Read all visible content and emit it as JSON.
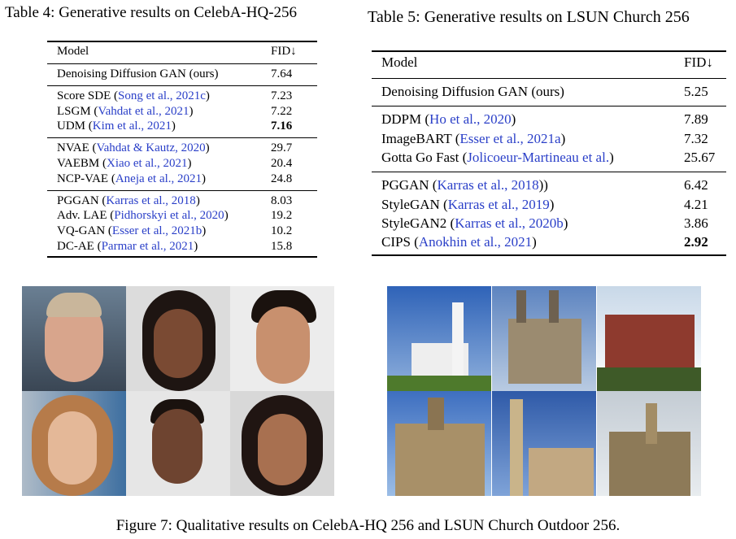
{
  "table4": {
    "caption": "Table 4: Generative results on CelebA-HQ-256",
    "header": [
      "Model",
      "FID↓"
    ],
    "groups": [
      [
        {
          "prefix": "Denoising Diffusion GAN (ours)",
          "fid": 7.64
        }
      ],
      [
        {
          "prefix": "Score SDE (",
          "cite": "Song et al., 2021c",
          "suffix": ")",
          "fid": 7.23
        },
        {
          "prefix": "LSGM (",
          "cite": "Vahdat et al., 2021",
          "suffix": ")",
          "fid": 7.22
        },
        {
          "prefix": "UDM (",
          "cite": "Kim et al., 2021",
          "suffix": ")",
          "fid": 7.16,
          "bold": true
        }
      ],
      [
        {
          "prefix": "NVAE (",
          "cite": "Vahdat & Kautz, 2020",
          "suffix": ")",
          "fid": 29.7
        },
        {
          "prefix": "VAEBM (",
          "cite": "Xiao et al., 2021",
          "suffix": ")",
          "fid": 20.4
        },
        {
          "prefix": "NCP-VAE (",
          "cite": "Aneja et al., 2021",
          "suffix": ")",
          "fid": 24.8
        }
      ],
      [
        {
          "prefix": "PGGAN (",
          "cite": "Karras et al., 2018",
          "suffix": ")",
          "fid": 8.03
        },
        {
          "prefix": "Adv. LAE (",
          "cite": "Pidhorskyi et al., 2020",
          "suffix": ")",
          "fid": 19.2
        },
        {
          "prefix": "VQ-GAN (",
          "cite": "Esser et al., 2021b",
          "suffix": ")",
          "fid": 10.2
        },
        {
          "prefix": "DC-AE (",
          "cite": "Parmar et al., 2021",
          "suffix": ")",
          "fid": 15.8
        }
      ]
    ]
  },
  "table5": {
    "caption": "Table 5: Generative results on LSUN Church 256",
    "header": [
      "Model",
      "FID↓"
    ],
    "groups": [
      [
        {
          "prefix": "Denoising Diffusion GAN (ours)",
          "fid": 5.25
        }
      ],
      [
        {
          "prefix": "DDPM (",
          "cite": "Ho et al., 2020",
          "suffix": ")",
          "fid": 7.89
        },
        {
          "prefix": "ImageBART (",
          "cite": "Esser et al., 2021a",
          "suffix": ")",
          "fid": 7.32
        },
        {
          "prefix": "Gotta Go Fast (",
          "cite": "Jolicoeur-Martineau et al.",
          "suffix": ")",
          "fid": 25.67
        }
      ],
      [
        {
          "prefix": "PGGAN (",
          "cite": "Karras et al., 2018",
          "suffix": "))",
          "fid": 6.42
        },
        {
          "prefix": "StyleGAN (",
          "cite": "Karras et al., 2019",
          "suffix": ")",
          "fid": 4.21
        },
        {
          "prefix": "StyleGAN2 (",
          "cite": "Karras et al., 2020b",
          "suffix": ")",
          "fid": 3.86
        },
        {
          "prefix": "CIPS (",
          "cite": "Anokhin et al., 2021",
          "suffix": ")",
          "fid": 2.92,
          "bold": true
        }
      ]
    ]
  },
  "figure": {
    "caption": "Figure 7: Qualitative results on CelebA-HQ 256 and LSUN Church Outdoor 256."
  }
}
